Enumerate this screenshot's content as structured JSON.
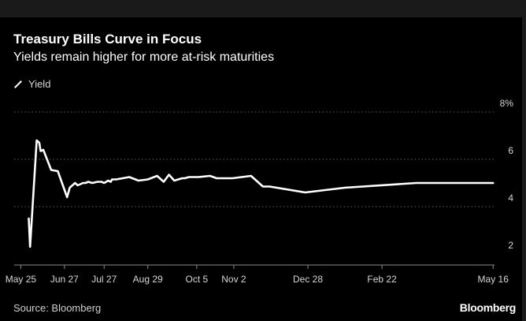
{
  "header": {
    "title": "Treasury Bills Curve in Focus",
    "subtitle": "Yields remain higher for more at-risk maturities"
  },
  "legend": {
    "label": "Yield"
  },
  "footer": {
    "source": "Source: Bloomberg",
    "brand": "Bloomberg"
  },
  "colors": {
    "background": "#000000",
    "line": "#ffffff",
    "grid": "#5a5a5a",
    "text": "#d6d6d6"
  },
  "chart_data": {
    "type": "line",
    "title": "Treasury Bills Curve in Focus",
    "subtitle": "Yields remain higher for more at-risk maturities",
    "xlabel": "",
    "ylabel": "",
    "ylim": [
      2,
      8
    ],
    "yticks": [
      2,
      4,
      6,
      8
    ],
    "ytick_labels": [
      "2",
      "4",
      "6",
      "8%"
    ],
    "xlim": [
      "2023-05-20",
      "2024-05-23"
    ],
    "xticks": [
      "2023-05-25",
      "2023-06-27",
      "2023-07-27",
      "2023-08-29",
      "2023-10-05",
      "2023-11-02",
      "2023-12-28",
      "2024-02-22",
      "2024-05-16"
    ],
    "xtick_labels": [
      "May 25",
      "Jun 27",
      "Jul 27",
      "Aug 29",
      "Oct 5",
      "Nov 2",
      "Dec 28",
      "Feb 22",
      "May 16"
    ],
    "grid": true,
    "legend_position": "top-left",
    "series": [
      {
        "name": "Yield",
        "x": [
          "2023-05-31",
          "2023-06-01",
          "2023-06-06",
          "2023-06-08",
          "2023-06-09",
          "2023-06-11",
          "2023-06-17",
          "2023-06-22",
          "2023-06-29",
          "2023-07-01",
          "2023-07-05",
          "2023-07-07",
          "2023-07-11",
          "2023-07-13",
          "2023-07-15",
          "2023-07-18",
          "2023-07-22",
          "2023-07-25",
          "2023-07-27",
          "2023-07-30",
          "2023-08-01",
          "2023-08-02",
          "2023-08-05",
          "2023-08-10",
          "2023-08-15",
          "2023-08-22",
          "2023-08-29",
          "2023-09-05",
          "2023-09-10",
          "2023-09-14",
          "2023-09-18",
          "2023-09-21",
          "2023-09-24",
          "2023-09-26",
          "2023-09-29",
          "2023-10-06",
          "2023-10-15",
          "2023-10-20",
          "2023-10-26",
          "2023-11-01",
          "2023-11-15",
          "2023-11-24",
          "2023-11-29",
          "2023-12-26",
          "2024-01-25",
          "2024-03-19",
          "2024-05-16"
        ],
        "values": [
          3.5,
          2.3,
          6.8,
          6.7,
          6.35,
          6.4,
          5.55,
          5.5,
          4.4,
          4.8,
          5.0,
          4.9,
          5.0,
          5.0,
          5.05,
          5.0,
          5.05,
          5.05,
          5.0,
          5.1,
          5.05,
          5.15,
          5.15,
          5.2,
          5.25,
          5.1,
          5.15,
          5.3,
          5.05,
          5.35,
          5.1,
          5.15,
          5.2,
          5.2,
          5.25,
          5.25,
          5.3,
          5.2,
          5.2,
          5.2,
          5.3,
          4.85,
          4.85,
          4.6,
          4.8,
          5.0,
          5.0
        ]
      }
    ]
  }
}
